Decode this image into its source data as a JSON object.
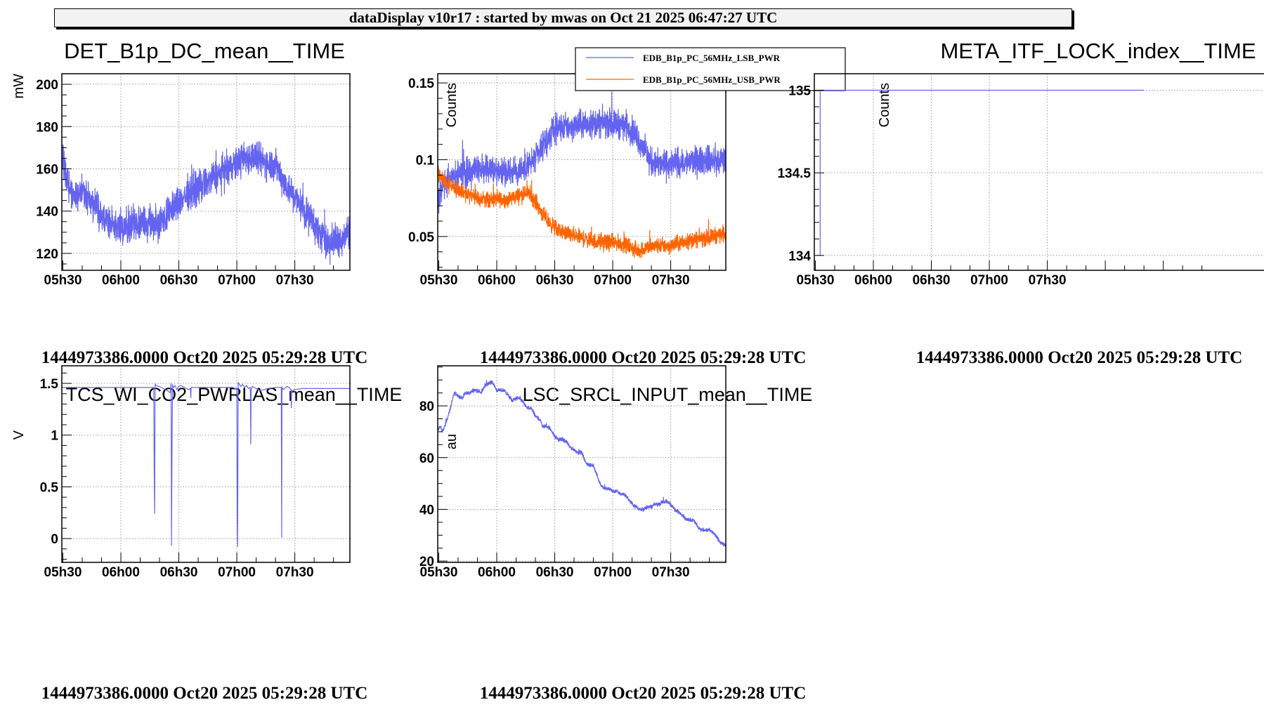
{
  "header": {
    "title": "dataDisplay v10r17 : started by mwas on Oct 21 2025 06:47:27 UTC"
  },
  "colors": {
    "blue": "#6464f0",
    "orange": "#ff6400",
    "grid": "#999999",
    "header_bg": "#f2f2f2"
  },
  "time_axis": {
    "start_min": 329.47,
    "end_min": 478.5,
    "ticks": [
      {
        "min": 330,
        "label": "05h30"
      },
      {
        "min": 360,
        "label": "06h00"
      },
      {
        "min": 390,
        "label": "06h30"
      },
      {
        "min": 420,
        "label": "07h00"
      },
      {
        "min": 450,
        "label": "07h30"
      }
    ],
    "minor_step_min": 10,
    "offset_label": "1444973386.0000 Oct20 2025 05:29:28 UTC"
  },
  "chart_data": [
    {
      "id": "det",
      "type": "line",
      "title": "DET_B1p_DC_mean__TIME",
      "xlabel": "1444973386.0000 Oct20 2025 05:29:28 UTC",
      "ylabel": "mW",
      "ylim": [
        112,
        205
      ],
      "yticks": [
        {
          "v": 120,
          "label": "120"
        },
        {
          "v": 140,
          "label": "140"
        },
        {
          "v": 160,
          "label": "160"
        },
        {
          "v": 180,
          "label": "180"
        },
        {
          "v": 200,
          "label": "200"
        }
      ],
      "yminor": 5,
      "grid": true,
      "series": [
        {
          "name": "DET_B1p_DC_mean",
          "color": "#6464f0",
          "noise": 6,
          "x": [
            329.5,
            331,
            333,
            336,
            340,
            344,
            348,
            352,
            356,
            360,
            364,
            368,
            372,
            376,
            380,
            384,
            388,
            392,
            396,
            400,
            404,
            408,
            412,
            416,
            420,
            424,
            428,
            432,
            436,
            440,
            444,
            448,
            452,
            456,
            460,
            464,
            468,
            472,
            476,
            478.5
          ],
          "y": [
            170,
            158,
            150,
            148,
            150,
            146,
            140,
            136,
            134,
            132,
            133,
            134,
            135,
            134,
            135,
            138,
            142,
            146,
            149,
            151,
            153,
            156,
            158,
            160,
            163,
            165,
            166,
            164,
            163,
            162,
            155,
            149,
            144,
            139,
            134,
            128,
            125,
            126,
            129,
            131
          ]
        }
      ]
    },
    {
      "id": "edb",
      "type": "line",
      "title": "",
      "xlabel": "1444973386.0000 Oct20 2025 05:29:28 UTC",
      "ylabel": "Counts",
      "ylim": [
        0.028,
        0.156
      ],
      "yticks": [
        {
          "v": 0.05,
          "label": "0.05"
        },
        {
          "v": 0.1,
          "label": "0.1"
        },
        {
          "v": 0.15,
          "label": "0.15"
        }
      ],
      "yminor": 0.01,
      "grid": true,
      "legend": {
        "position": "top-right"
      },
      "series": [
        {
          "name": "EDB_B1p_PC_56MHz_LSB_PWR",
          "color": "#6464f0",
          "noise": 0.007,
          "x": [
            329.5,
            331,
            334,
            338,
            342,
            348,
            354,
            360,
            366,
            372,
            378,
            382,
            386,
            388,
            390,
            394,
            400,
            406,
            412,
            418,
            424,
            428,
            432,
            436,
            438,
            440,
            444,
            450,
            456,
            462,
            468,
            474,
            478.5
          ],
          "y": [
            0.072,
            0.08,
            0.087,
            0.089,
            0.091,
            0.092,
            0.094,
            0.093,
            0.092,
            0.093,
            0.098,
            0.104,
            0.112,
            0.117,
            0.12,
            0.121,
            0.122,
            0.123,
            0.124,
            0.124,
            0.123,
            0.122,
            0.116,
            0.108,
            0.102,
            0.098,
            0.097,
            0.097,
            0.098,
            0.099,
            0.1,
            0.099,
            0.1
          ]
        },
        {
          "name": "EDB_B1p_PC_56MHz_USB_PWR",
          "color": "#ff6400",
          "noise": 0.004,
          "x": [
            329.5,
            331,
            334,
            338,
            342,
            348,
            354,
            360,
            366,
            372,
            376,
            380,
            384,
            388,
            392,
            398,
            404,
            410,
            416,
            422,
            428,
            432,
            434,
            438,
            444,
            450,
            456,
            462,
            468,
            474,
            478.5
          ],
          "y": [
            0.093,
            0.088,
            0.085,
            0.082,
            0.079,
            0.076,
            0.074,
            0.074,
            0.074,
            0.077,
            0.079,
            0.073,
            0.064,
            0.058,
            0.054,
            0.051,
            0.049,
            0.047,
            0.046,
            0.046,
            0.044,
            0.041,
            0.041,
            0.043,
            0.044,
            0.044,
            0.046,
            0.048,
            0.049,
            0.051,
            0.052
          ]
        }
      ]
    },
    {
      "id": "meta",
      "type": "line",
      "title": "META_ITF_LOCK_index__TIME",
      "xlabel": "1444973386.0000 Oct20 2025 05:29:28 UTC",
      "ylabel": "Counts",
      "ylim": [
        133.91,
        135.1
      ],
      "yticks": [
        {
          "v": 134,
          "label": "134"
        },
        {
          "v": 134.5,
          "label": "134.5"
        },
        {
          "v": 135,
          "label": "135"
        }
      ],
      "yminor": 0.1,
      "grid": true,
      "series": [
        {
          "name": "META_ITF_LOCK_index",
          "color": "#6464f0",
          "noise": 0,
          "step": true,
          "x": [
            330.5,
            332.5,
            332.5,
            500
          ],
          "y": [
            134,
            134,
            135,
            135
          ]
        }
      ]
    },
    {
      "id": "tcs",
      "type": "line",
      "title": "TCS_WI_CO2_PWRLAS_mean__TIME",
      "xlabel": "1444973386.0000 Oct20 2025 05:29:28 UTC",
      "ylabel": "V",
      "ylim": [
        -0.23,
        1.67
      ],
      "yticks": [
        {
          "v": 0,
          "label": "0"
        },
        {
          "v": 0.5,
          "label": "0.5"
        },
        {
          "v": 1,
          "label": "1"
        },
        {
          "v": 1.5,
          "label": "1.5"
        }
      ],
      "yminor": 0.1,
      "grid": true,
      "series": [
        {
          "name": "TCS_WI_CO2_PWRLAS_mean",
          "color": "#6464f0",
          "noise": 0,
          "x": [
            329.5,
            377,
            377.3,
            377.5,
            377.7,
            378,
            380,
            382,
            384,
            385.5,
            386,
            386.2,
            386.5,
            386.8,
            387.2,
            388,
            389,
            390,
            391,
            392,
            393,
            395,
            396,
            396.2,
            396.4,
            398,
            402,
            406,
            410,
            414,
            418,
            419,
            420,
            420.2,
            420.4,
            420.7,
            421,
            422,
            423,
            424,
            425,
            426,
            427,
            427.2,
            427.4,
            428,
            430,
            432,
            436,
            440,
            443,
            443.2,
            443.4,
            444,
            446,
            447,
            448,
            448.2,
            448.4,
            450,
            454,
            460,
            470,
            478.5
          ],
          "y": [
            1.46,
            1.46,
            0.52,
            0.24,
            1.5,
            1.48,
            1.47,
            1.45,
            1.43,
            1.41,
            1.5,
            -0.07,
            0.93,
            1.49,
            1.46,
            1.48,
            1.44,
            1.47,
            1.48,
            1.47,
            1.46,
            1.44,
            1.45,
            1.36,
            1.46,
            1.46,
            1.46,
            1.46,
            1.46,
            1.46,
            1.46,
            1.45,
            1.45,
            0.21,
            -0.08,
            1.51,
            1.5,
            1.47,
            1.49,
            1.46,
            1.48,
            1.45,
            1.46,
            0.91,
            1.44,
            1.47,
            1.45,
            1.43,
            1.45,
            1.46,
            1.46,
            0.01,
            1.46,
            1.44,
            1.47,
            1.46,
            1.44,
            1.26,
            1.43,
            1.44,
            1.45,
            1.45,
            1.45,
            1.45
          ]
        }
      ]
    },
    {
      "id": "lsc",
      "type": "line",
      "title": "LSC_SRCL_INPUT_mean__TIME",
      "xlabel": "1444973386.0000 Oct20 2025 05:29:28 UTC",
      "ylabel": "au",
      "ylim": [
        19.5,
        95.5
      ],
      "yticks": [
        {
          "v": 20,
          "label": "20"
        },
        {
          "v": 40,
          "label": "40"
        },
        {
          "v": 60,
          "label": "60"
        },
        {
          "v": 80,
          "label": "80"
        }
      ],
      "yminor": 5,
      "grid": true,
      "series": [
        {
          "name": "LSC_SRCL_INPUT_mean",
          "color": "#6464f0",
          "noise": 0.6,
          "x": [
            329.5,
            331,
            332,
            334,
            336,
            338,
            340,
            342,
            344,
            346,
            348,
            350,
            352,
            354,
            356,
            358,
            360,
            362,
            364,
            366,
            368,
            370,
            372,
            374,
            376,
            378,
            380,
            382,
            384,
            386,
            388,
            390,
            392,
            394,
            396,
            398,
            400,
            402,
            404,
            406,
            408,
            410,
            412,
            414,
            416,
            418,
            420,
            422,
            424,
            426,
            428,
            430,
            432,
            434,
            436,
            438,
            440,
            442,
            444,
            446,
            448,
            450,
            452,
            454,
            456,
            458,
            460,
            462,
            464,
            466,
            468,
            470,
            472,
            474,
            476,
            478.5
          ],
          "y": [
            71,
            72,
            70,
            74,
            79,
            85,
            84,
            83,
            85,
            85,
            86,
            86,
            85,
            88,
            89,
            89,
            86,
            86,
            86,
            84,
            82,
            83,
            83,
            81,
            79,
            79,
            76,
            75,
            72,
            72,
            71,
            68,
            67,
            67,
            66,
            64,
            63,
            62,
            62,
            58,
            57,
            57,
            53,
            49,
            48,
            48,
            47,
            47,
            46,
            46,
            44,
            42,
            41,
            40,
            40,
            41,
            41,
            42,
            42,
            43,
            43,
            42,
            40,
            39,
            38,
            36,
            36,
            36,
            33,
            32,
            32,
            32,
            31,
            29,
            27,
            26
          ]
        }
      ]
    }
  ]
}
